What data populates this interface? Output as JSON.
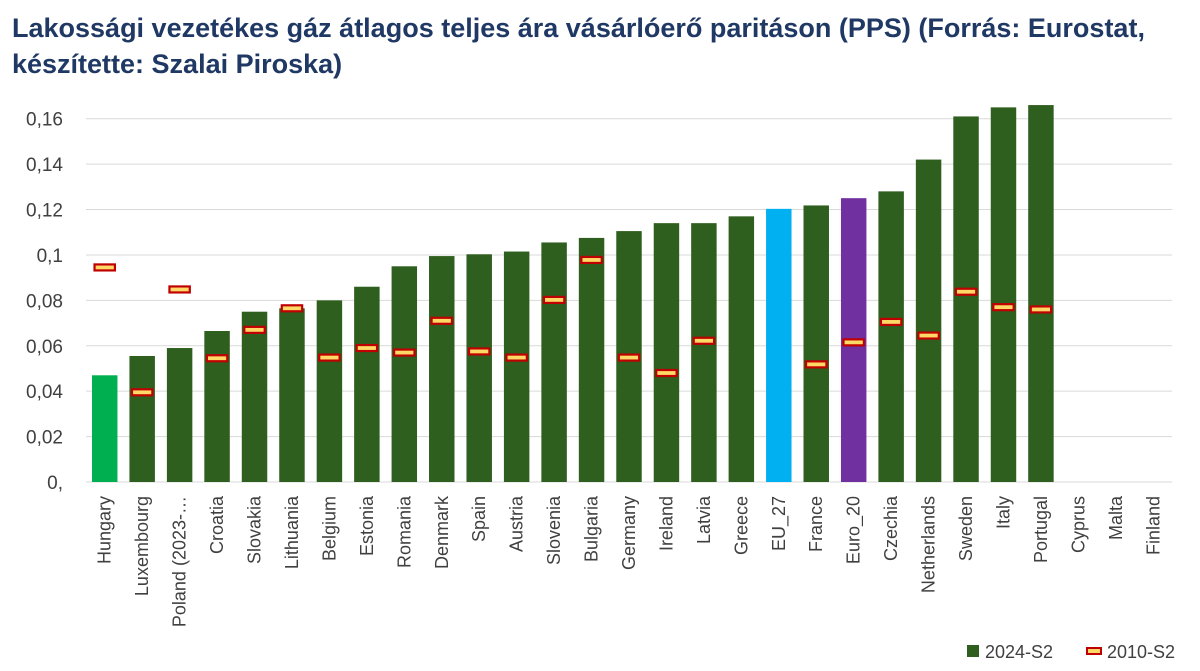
{
  "title": "Lakossági vezetékes gáz átlagos teljes ára vásárlóerő paritáson (PPS) (Forrás: Eurostat, készítette: Szalai Piroska)",
  "colors": {
    "series_2024": "#2e5f1e",
    "highlight_hungary": "#00b050",
    "highlight_eu27": "#00b0f0",
    "highlight_euro20": "#7030a0",
    "marker_fill": "#ffd966",
    "marker_stroke": "#c00000",
    "grid": "#d9d9d9",
    "title": "#1f3864"
  },
  "chart_data": {
    "type": "bar",
    "title": "Lakossági vezetékes gáz átlagos teljes ára vásárlóerő paritáson (PPS) (Forrás: Eurostat, készítette: Szalai Piroska)",
    "xlabel": "",
    "ylabel": "",
    "ylim": [
      0,
      0.17
    ],
    "yticks": [
      "0,",
      "0,02",
      "0,04",
      "0,06",
      "0,08",
      "0,1",
      "0,12",
      "0,14",
      "0,16"
    ],
    "ytick_values": [
      0,
      0.02,
      0.04,
      0.06,
      0.08,
      0.1,
      0.12,
      0.14,
      0.16
    ],
    "grid": true,
    "legend_position": "bottom-right",
    "categories": [
      "Hungary",
      "Luxembourg",
      "Poland (2023-…",
      "Croatia",
      "Slovakia",
      "Lithuania",
      "Belgium",
      "Estonia",
      "Romania",
      "Denmark",
      "Spain",
      "Austria",
      "Slovenia",
      "Bulgaria",
      "Germany",
      "Ireland",
      "Latvia",
      "Greece",
      "EU_27",
      "France",
      "Euro_20",
      "Czechia",
      "Netherlands",
      "Sweden",
      "Italy",
      "Portugal",
      "Cyprus",
      "Malta",
      "Finland"
    ],
    "series": [
      {
        "name": "2024-S2",
        "type": "bar",
        "values": [
          0.047,
          0.0555,
          0.059,
          0.0665,
          0.075,
          0.0765,
          0.08,
          0.086,
          0.095,
          0.0995,
          0.1003,
          0.1015,
          0.1055,
          0.1075,
          0.1105,
          0.114,
          0.114,
          0.117,
          0.1203,
          0.1218,
          0.125,
          0.128,
          0.142,
          0.161,
          0.165,
          0.166,
          null,
          null,
          null
        ]
      },
      {
        "name": "2010-S2",
        "type": "marker",
        "values": [
          0.0945,
          0.0395,
          0.0848,
          0.0545,
          0.067,
          0.0765,
          0.0548,
          0.059,
          0.057,
          0.071,
          0.0575,
          0.0548,
          0.0802,
          0.0978,
          0.0548,
          0.048,
          0.0622,
          null,
          null,
          0.0518,
          0.0615,
          0.0705,
          0.0645,
          0.0838,
          0.077,
          0.076,
          null,
          null,
          null
        ]
      }
    ],
    "highlight_colors": {
      "Hungary": "#00b050",
      "EU_27": "#00b0f0",
      "Euro_20": "#7030a0"
    }
  }
}
